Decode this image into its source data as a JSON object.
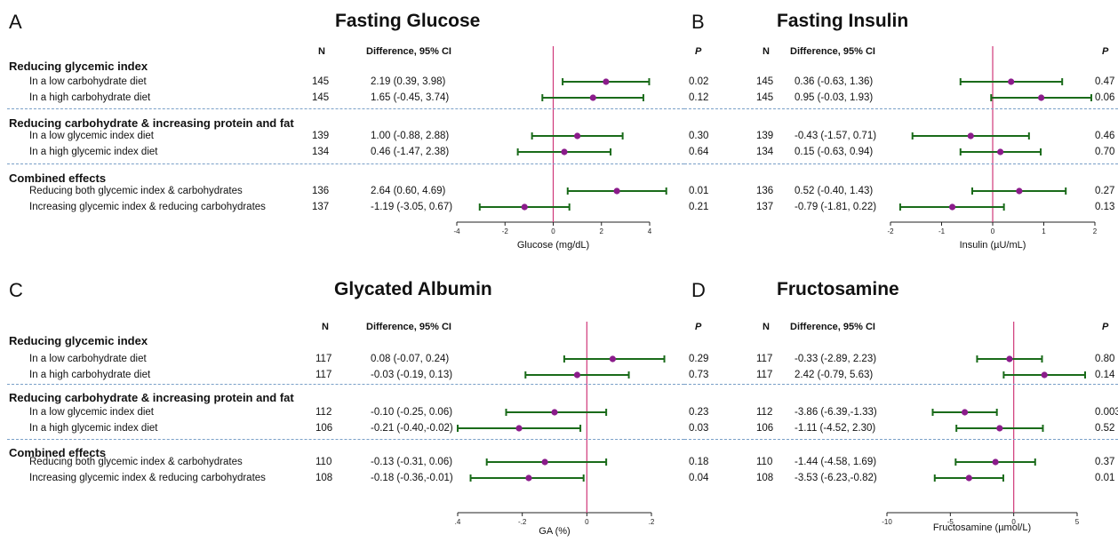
{
  "colors": {
    "ci": "#1a6b1a",
    "point": "#8b1c8b",
    "ref": "#d0397a",
    "divider": "#7aa0c8",
    "axis": "#222222"
  },
  "headers": {
    "n": "N",
    "diff": "Difference, 95% CI",
    "p": "P"
  },
  "sections": [
    "Reducing glycemic index",
    "Reducing carbohydrate & increasing protein and fat",
    "Combined effects"
  ],
  "rows": [
    "In a low carbohydrate diet",
    "In a high carbohydrate diet",
    "In a low glycemic index diet",
    "In a high glycemic index diet",
    "Reducing both glycemic index & carbohydrates",
    "Increasing glycemic index & reducing carbohydrates"
  ],
  "chart_data": [
    {
      "type": "forest",
      "letter": "A",
      "title": "Fasting Glucose",
      "xlabel": "Glucose (mg/dL)",
      "xlim": [
        -4,
        4
      ],
      "ticks": [
        "-4",
        "-2",
        "0",
        "2",
        "4"
      ],
      "n": [
        "145",
        "145",
        "139",
        "134",
        "136",
        "137"
      ],
      "diff_text": [
        "2.19 (0.39, 3.98)",
        "1.65 (-0.45, 3.74)",
        "1.00 (-0.88, 2.88)",
        "0.46 (-1.47, 2.38)",
        "2.64 (0.60, 4.69)",
        "-1.19 (-3.05, 0.67)"
      ],
      "p": [
        "0.02",
        "0.12",
        "0.30",
        "0.64",
        "0.01",
        "0.21"
      ],
      "est": [
        2.19,
        1.65,
        1.0,
        0.46,
        2.64,
        -1.19
      ],
      "lo": [
        0.39,
        -0.45,
        -0.88,
        -1.47,
        0.6,
        -3.05
      ],
      "hi": [
        3.98,
        3.74,
        2.88,
        2.38,
        4.69,
        0.67
      ]
    },
    {
      "type": "forest",
      "letter": "B",
      "title": "Fasting Insulin",
      "xlabel": "Insulin (µU/mL)",
      "xlim": [
        -2,
        2
      ],
      "ticks": [
        "-2",
        "-1",
        "0",
        "1",
        "2"
      ],
      "n": [
        "145",
        "145",
        "139",
        "134",
        "136",
        "137"
      ],
      "diff_text": [
        "0.36 (-0.63, 1.36)",
        "0.95 (-0.03, 1.93)",
        "-0.43 (-1.57, 0.71)",
        "0.15 (-0.63, 0.94)",
        "0.52 (-0.40, 1.43)",
        "-0.79 (-1.81, 0.22)"
      ],
      "p": [
        "0.47",
        "0.06",
        "0.46",
        "0.70",
        "0.27",
        "0.13"
      ],
      "est": [
        0.36,
        0.95,
        -0.43,
        0.15,
        0.52,
        -0.79
      ],
      "lo": [
        -0.63,
        -0.03,
        -1.57,
        -0.63,
        -0.4,
        -1.81
      ],
      "hi": [
        1.36,
        1.93,
        0.71,
        0.94,
        1.43,
        0.22
      ]
    },
    {
      "type": "forest",
      "letter": "C",
      "title": "Glycated Albumin",
      "xlabel": "GA (%)",
      "xlim": [
        -0.4,
        0.2
      ],
      "ticks": [
        ".4",
        "-.2",
        "0",
        ".2"
      ],
      "n": [
        "117",
        "117",
        "112",
        "106",
        "110",
        "108"
      ],
      "diff_text": [
        "0.08 (-0.07, 0.24)",
        "-0.03 (-0.19, 0.13)",
        "-0.10 (-0.25, 0.06)",
        "-0.21 (-0.40,-0.02)",
        "-0.13 (-0.31, 0.06)",
        "-0.18 (-0.36,-0.01)"
      ],
      "p": [
        "0.29",
        "0.73",
        "0.23",
        "0.03",
        "0.18",
        "0.04"
      ],
      "est": [
        0.08,
        -0.03,
        -0.1,
        -0.21,
        -0.13,
        -0.18
      ],
      "lo": [
        -0.07,
        -0.19,
        -0.25,
        -0.4,
        -0.31,
        -0.36
      ],
      "hi": [
        0.24,
        0.13,
        0.06,
        -0.02,
        0.06,
        -0.01
      ]
    },
    {
      "type": "forest",
      "letter": "D",
      "title": "Fructosamine",
      "xlabel": "Fructosamine (µmol/L)",
      "xlim": [
        -10,
        5
      ],
      "ticks": [
        "-10",
        "-5",
        "0",
        "5"
      ],
      "n": [
        "117",
        "117",
        "112",
        "106",
        "110",
        "108"
      ],
      "diff_text": [
        "-0.33 (-2.89, 2.23)",
        "2.42 (-0.79, 5.63)",
        "-3.86 (-6.39,-1.33)",
        "-1.11 (-4.52, 2.30)",
        "-1.44 (-4.58, 1.69)",
        "-3.53 (-6.23,-0.82)"
      ],
      "p": [
        "0.80",
        "0.14",
        "0.003",
        "0.52",
        "0.37",
        "0.01"
      ],
      "est": [
        -0.33,
        2.42,
        -3.86,
        -1.11,
        -1.44,
        -3.53
      ],
      "lo": [
        -2.89,
        -0.79,
        -6.39,
        -4.52,
        -4.58,
        -6.23
      ],
      "hi": [
        2.23,
        5.63,
        -1.33,
        2.3,
        1.69,
        -0.82
      ]
    }
  ]
}
